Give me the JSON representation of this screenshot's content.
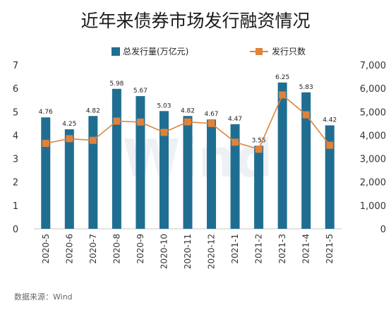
{
  "chart_data": {
    "type": "bar",
    "title": "近年来债券市场发行融资情况",
    "categories": [
      "2020-5",
      "2020-6",
      "2020-7",
      "2020-8",
      "2020-9",
      "2020-10",
      "2020-11",
      "2020-12",
      "2021-1",
      "2021-2",
      "2021-3",
      "2021-4",
      "2021-5"
    ],
    "series": [
      {
        "name": "总发行量(万亿元)",
        "type": "bar",
        "axis": "left",
        "values": [
          4.76,
          4.25,
          4.82,
          5.98,
          5.67,
          5.03,
          4.82,
          4.67,
          4.47,
          3.55,
          6.25,
          5.83,
          4.42
        ],
        "labels": [
          "4.76",
          "4.25",
          "4.82",
          "5.98",
          "5.67",
          "5.03",
          "4.82",
          "4.67",
          "4.47",
          "3.55",
          "6.25",
          "5.83",
          "4.42"
        ],
        "color": "#1F6E92"
      },
      {
        "name": "发行只数",
        "type": "line",
        "axis": "right",
        "values": [
          3650,
          3850,
          3780,
          4600,
          4560,
          4120,
          4570,
          4500,
          3700,
          3400,
          5720,
          4870,
          3570
        ],
        "color": "#E0823A"
      }
    ],
    "y_left": {
      "min": 0,
      "max": 7,
      "ticks": [
        "0",
        "1",
        "2",
        "3",
        "4",
        "5",
        "6",
        "7"
      ]
    },
    "y_right": {
      "min": 0,
      "max": 7000,
      "ticks": [
        "0",
        "1,000",
        "2,000",
        "3,000",
        "4,000",
        "5,000",
        "6,000",
        "7,000"
      ]
    },
    "grid": false,
    "legend_position": "top-center",
    "watermark": "Wind",
    "source": "数据来源：Wind"
  }
}
